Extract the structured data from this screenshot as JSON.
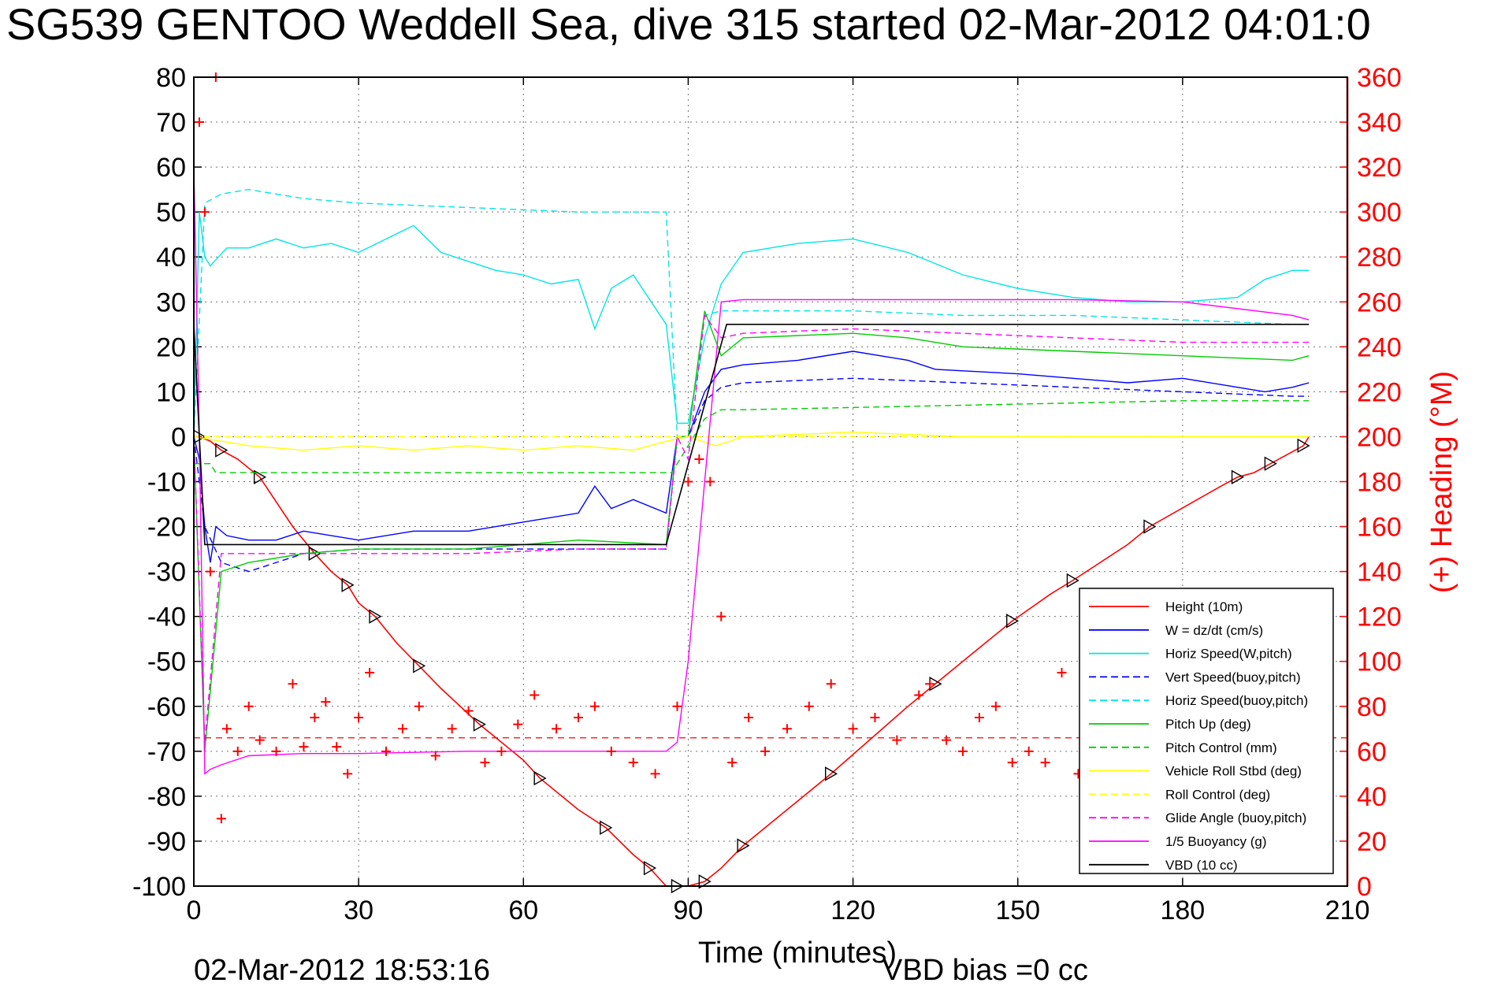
{
  "chart_data": {
    "type": "line",
    "title": "SG539 GENTOO Weddell Sea, dive 315 started 02-Mar-2012 04:01:0",
    "xlabel": "Time (minutes)",
    "ylabel_right": "(+) Heading (°M)",
    "footer_date": "02-Mar-2012 18:53:16",
    "footer_bias": "VBD bias =0 cc",
    "xlim": [
      0,
      210
    ],
    "ylim": [
      -100,
      80
    ],
    "ylim_right": [
      0,
      360
    ],
    "x_ticks": [
      0,
      30,
      60,
      90,
      120,
      150,
      180,
      210
    ],
    "y_ticks": [
      80,
      70,
      60,
      50,
      40,
      30,
      20,
      10,
      0,
      -10,
      -20,
      -30,
      -40,
      -50,
      -60,
      -70,
      -80,
      -90,
      -100
    ],
    "y_ticks_right": [
      360,
      340,
      320,
      300,
      280,
      260,
      240,
      220,
      200,
      180,
      160,
      140,
      120,
      100,
      80,
      60,
      40,
      20,
      0
    ],
    "grid": true,
    "legend_position": "bottom-right",
    "series": [
      {
        "name": "Height (10m)",
        "color": "#ff0000",
        "style": "solid",
        "x": [
          0,
          1,
          3,
          5,
          8,
          12,
          18,
          22,
          25,
          28,
          30,
          33,
          37,
          41,
          45,
          52,
          60,
          63,
          70,
          75,
          80,
          83,
          86,
          88,
          90,
          93,
          96,
          100,
          106,
          116,
          130,
          135,
          142,
          149,
          156,
          160,
          170,
          174,
          187,
          190,
          193,
          196,
          199,
          202,
          203
        ],
        "y": [
          0,
          0,
          -1,
          -3,
          -5,
          -9,
          -20,
          -26,
          -30,
          -33,
          -37,
          -40,
          -46,
          -51,
          -56,
          -64,
          -72,
          -76,
          -83,
          -87,
          -93,
          -96,
          -100,
          -100,
          -100,
          -99,
          -96,
          -91,
          -85,
          -75,
          -60,
          -55,
          -48,
          -41,
          -35,
          -32,
          -24,
          -20,
          -11,
          -9,
          -8,
          -6,
          -4,
          -2,
          0
        ]
      },
      {
        "name": "W = dz/dt (cm/s)",
        "color": "#0000ff",
        "style": "solid",
        "x": [
          0,
          1,
          2,
          3,
          4,
          6,
          10,
          15,
          20,
          30,
          40,
          50,
          60,
          70,
          73,
          76,
          80,
          86,
          88,
          90,
          93,
          96,
          100,
          110,
          120,
          130,
          135,
          150,
          160,
          170,
          180,
          190,
          195,
          200,
          203
        ],
        "y": [
          0,
          -5,
          -20,
          -28,
          -20,
          -22,
          -23,
          -23,
          -21,
          -23,
          -21,
          -21,
          -19,
          -17,
          -11,
          -16,
          -14,
          -17,
          0,
          0,
          10,
          15,
          16,
          17,
          19,
          17,
          15,
          14,
          13,
          12,
          13,
          11,
          10,
          11,
          12
        ]
      },
      {
        "name": "Horiz Speed(W,pitch)",
        "color": "#00e5e5",
        "style": "solid",
        "x": [
          0,
          1,
          2,
          3,
          6,
          10,
          15,
          20,
          25,
          30,
          35,
          40,
          45,
          50,
          55,
          60,
          65,
          70,
          73,
          76,
          80,
          86,
          88,
          90,
          93,
          96,
          100,
          110,
          120,
          130,
          140,
          150,
          160,
          170,
          180,
          190,
          195,
          200,
          203
        ],
        "y": [
          0,
          50,
          40,
          38,
          42,
          42,
          44,
          42,
          43,
          41,
          44,
          47,
          41,
          39,
          37,
          36,
          34,
          35,
          24,
          33,
          36,
          25,
          3,
          3,
          22,
          34,
          41,
          43,
          44,
          41,
          36,
          33,
          31,
          30,
          30,
          31,
          35,
          37,
          37
        ]
      },
      {
        "name": "Vert Speed(buoy,pitch)",
        "color": "#0000ff",
        "style": "dashed",
        "x": [
          0,
          2,
          5,
          10,
          20,
          30,
          50,
          70,
          86,
          88,
          90,
          93,
          96,
          100,
          120,
          140,
          160,
          180,
          200,
          203
        ],
        "y": [
          0,
          -20,
          -28,
          -30,
          -26,
          -25,
          -25,
          -25,
          -25,
          0,
          0,
          8,
          11,
          12,
          13,
          12,
          11,
          10,
          9,
          9
        ]
      },
      {
        "name": "Horiz Speed(buoy,pitch)",
        "color": "#00e5e5",
        "style": "dashed",
        "x": [
          0,
          2,
          5,
          10,
          20,
          30,
          50,
          70,
          86,
          88,
          90,
          93,
          96,
          100,
          120,
          140,
          160,
          180,
          200,
          203
        ],
        "y": [
          0,
          52,
          54,
          55,
          53,
          52,
          51,
          50,
          50,
          0,
          0,
          27,
          28,
          28,
          28,
          27,
          27,
          26,
          25,
          25
        ]
      },
      {
        "name": "Pitch Up (deg)",
        "color": "#00cc00",
        "style": "solid",
        "x": [
          0,
          2,
          5,
          10,
          20,
          30,
          50,
          70,
          86,
          88,
          90,
          93,
          96,
          100,
          120,
          130,
          140,
          160,
          180,
          200,
          203
        ],
        "y": [
          0,
          -70,
          -30,
          -28,
          -26,
          -25,
          -25,
          -23,
          -24,
          0,
          0,
          28,
          18,
          22,
          23,
          22,
          20,
          19,
          18,
          17,
          18
        ]
      },
      {
        "name": "Pitch Control (mm)",
        "color": "#00cc00",
        "style": "dashed",
        "x": [
          0,
          3,
          4,
          5,
          86,
          87,
          90,
          93,
          96,
          100,
          140,
          180,
          203
        ],
        "y": [
          -6,
          -6,
          -8,
          -8,
          -8,
          -8,
          -2,
          4,
          6,
          6,
          7,
          8,
          8
        ]
      },
      {
        "name": "Vehicle Roll Stbd (deg)",
        "color": "#ffff00",
        "style": "solid",
        "x": [
          0,
          10,
          20,
          30,
          40,
          50,
          60,
          70,
          80,
          86,
          90,
          95,
          100,
          120,
          140,
          160,
          180,
          200,
          203
        ],
        "y": [
          0,
          -2,
          -3,
          -2,
          -3,
          -2,
          -3,
          -2,
          -3,
          -1,
          0,
          -2,
          0,
          1,
          0,
          0,
          0,
          0,
          0
        ]
      },
      {
        "name": "Roll Control (deg)",
        "color": "#ffff00",
        "style": "dashed",
        "x": [
          0,
          100,
          203
        ],
        "y": [
          0,
          0,
          0
        ]
      },
      {
        "name": "Glide Angle (buoy,pitch)",
        "color": "#ff00ff",
        "style": "dashed",
        "x": [
          0,
          2,
          5,
          10,
          20,
          30,
          50,
          70,
          86,
          88,
          90,
          93,
          96,
          100,
          120,
          140,
          160,
          180,
          200,
          203
        ],
        "y": [
          0,
          -68,
          -26,
          -26,
          -26,
          -26,
          -26,
          -25,
          -25,
          0,
          -5,
          27,
          22,
          23,
          24,
          23,
          22,
          21,
          21,
          21
        ]
      },
      {
        "name": "1/5 Buoyancy (g)",
        "color": "#ff00ff",
        "style": "solid",
        "x": [
          0,
          1,
          2,
          3,
          5,
          10,
          20,
          30,
          50,
          70,
          86,
          88,
          90,
          93,
          96,
          100,
          120,
          140,
          160,
          180,
          200,
          203
        ],
        "y": [
          60,
          0,
          -75,
          -74,
          -73,
          -71,
          -70.5,
          -70.5,
          -70,
          -70,
          -70,
          -68,
          -50,
          -10,
          30,
          30.5,
          30.5,
          30.5,
          30.5,
          30,
          27,
          26
        ]
      },
      {
        "name": "VBD (10 cc)",
        "color": "#000000",
        "style": "solid",
        "x": [
          0,
          1,
          2,
          3,
          30,
          86,
          97,
          203
        ],
        "y": [
          25,
          0,
          -24,
          -24,
          -24,
          -24,
          25,
          25
        ]
      }
    ],
    "heading_series": {
      "name": "(+) Heading (°M)",
      "color": "#ff0000",
      "marker": "+",
      "x": [
        1,
        2,
        3,
        4,
        5,
        6,
        8,
        10,
        12,
        15,
        18,
        20,
        22,
        24,
        26,
        28,
        30,
        32,
        35,
        38,
        41,
        44,
        47,
        50,
        53,
        56,
        59,
        62,
        66,
        70,
        73,
        76,
        80,
        84,
        88,
        90,
        92,
        94,
        96,
        98,
        101,
        104,
        108,
        112,
        116,
        120,
        124,
        128,
        132,
        134,
        137,
        140,
        143,
        146,
        149,
        152,
        155,
        158,
        161
      ],
      "y": [
        340,
        300,
        140,
        360,
        30,
        70,
        60,
        80,
        65,
        60,
        90,
        62,
        75,
        82,
        62,
        50,
        75,
        95,
        60,
        70,
        80,
        58,
        70,
        78,
        55,
        60,
        72,
        85,
        70,
        75,
        80,
        60,
        55,
        50,
        80,
        180,
        190,
        180,
        120,
        55,
        75,
        60,
        70,
        80,
        90,
        70,
        75,
        65,
        85,
        90,
        65,
        60,
        75,
        80,
        55,
        60,
        55,
        95,
        50
      ]
    },
    "heading_reference": 66
  },
  "legend": {
    "entries": [
      {
        "label": "Height (10m)",
        "color": "#ff0000",
        "style": "solid"
      },
      {
        "label": "W = dz/dt (cm/s)",
        "color": "#0000ff",
        "style": "solid"
      },
      {
        "label": "Horiz Speed(W,pitch)",
        "color": "#00e5e5",
        "style": "solid"
      },
      {
        "label": "Vert Speed(buoy,pitch)",
        "color": "#0000ff",
        "style": "dashed"
      },
      {
        "label": "Horiz Speed(buoy,pitch)",
        "color": "#00e5e5",
        "style": "dashed"
      },
      {
        "label": "Pitch Up (deg)",
        "color": "#00cc00",
        "style": "solid"
      },
      {
        "label": "Pitch Control (mm)",
        "color": "#00cc00",
        "style": "dashed"
      },
      {
        "label": "Vehicle Roll Stbd (deg)",
        "color": "#ffff00",
        "style": "solid"
      },
      {
        "label": "Roll Control (deg)",
        "color": "#ffff00",
        "style": "dashed"
      },
      {
        "label": "Glide Angle (buoy,pitch)",
        "color": "#ff00ff",
        "style": "dashed"
      },
      {
        "label": "1/5 Buoyancy (g)",
        "color": "#ff00ff",
        "style": "solid"
      },
      {
        "label": "VBD (10 cc)",
        "color": "#000000",
        "style": "solid"
      }
    ]
  }
}
